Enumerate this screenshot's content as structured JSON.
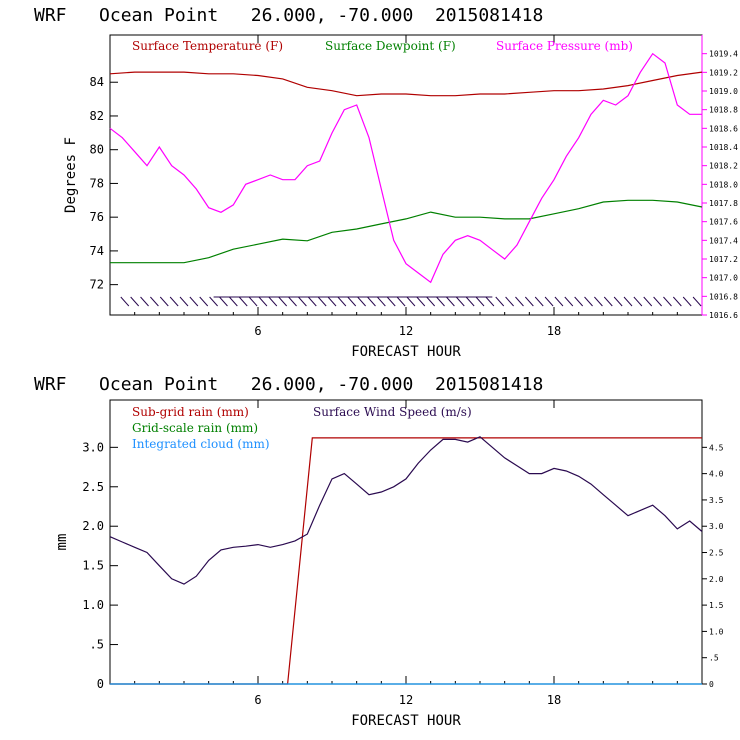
{
  "chart_data": [
    {
      "type": "line",
      "title": "WRF   Ocean Point   26.000, -70.000  2015081418",
      "xlabel": "FORECAST HOUR",
      "ylabel": "Degrees F",
      "xlim": [
        0,
        24
      ],
      "ylim": [
        70.2,
        86.8
      ],
      "x_ticks": [
        6,
        12,
        18
      ],
      "y_ticks": [
        72,
        74,
        76,
        78,
        80,
        82,
        84
      ],
      "y2_label": "",
      "y2lim": [
        1016.6,
        1019.6
      ],
      "y2_ticks": [
        "1016.6",
        "1016.8",
        "1017.0",
        "1017.2",
        "1017.4",
        "1017.6",
        "1017.8",
        "1018.0",
        "1018.2",
        "1018.4",
        "1018.6",
        "1018.8",
        "1019.0",
        "1019.2",
        "1019.4"
      ],
      "legend_placement": "top-left",
      "series": [
        {
          "name": "Surface Temperature (F)",
          "color": "#b00000",
          "axis": "left",
          "x": [
            0,
            1,
            2,
            3,
            4,
            5,
            6,
            7,
            8,
            9,
            10,
            11,
            12,
            13,
            14,
            15,
            16,
            17,
            18,
            19,
            20,
            21,
            22,
            23,
            24
          ],
          "values": [
            84.5,
            84.6,
            84.6,
            84.6,
            84.5,
            84.5,
            84.4,
            84.2,
            83.7,
            83.5,
            83.2,
            83.3,
            83.3,
            83.2,
            83.2,
            83.3,
            83.3,
            83.4,
            83.5,
            83.5,
            83.6,
            83.8,
            84.1,
            84.4,
            84.6
          ]
        },
        {
          "name": "Surface Dewpoint (F)",
          "color": "#008000",
          "axis": "left",
          "x": [
            0,
            1,
            2,
            3,
            4,
            5,
            6,
            7,
            8,
            9,
            10,
            11,
            12,
            13,
            14,
            15,
            16,
            17,
            18,
            19,
            20,
            21,
            22,
            23,
            24
          ],
          "values": [
            73.3,
            73.3,
            73.3,
            73.3,
            73.6,
            74.1,
            74.4,
            74.7,
            74.6,
            75.1,
            75.3,
            75.6,
            75.9,
            76.3,
            76.0,
            76.0,
            75.9,
            75.9,
            76.2,
            76.5,
            76.9,
            77.0,
            77.0,
            76.9,
            76.6
          ]
        },
        {
          "name": "Surface Pressure (mb)",
          "color": "#ff00ff",
          "axis": "right",
          "x": [
            0,
            0.5,
            1,
            1.5,
            2,
            2.5,
            3,
            3.5,
            4,
            4.5,
            5,
            5.5,
            6,
            6.5,
            7,
            7.5,
            8,
            8.5,
            9,
            9.5,
            10,
            10.5,
            11,
            11.5,
            12,
            12.5,
            13,
            13.5,
            14,
            14.5,
            15,
            15.5,
            16,
            16.5,
            17,
            17.5,
            18,
            18.5,
            19,
            19.5,
            20,
            20.5,
            21,
            21.5,
            22,
            22.5,
            23,
            23.5,
            24
          ],
          "values": [
            1018.6,
            1018.5,
            1018.35,
            1018.2,
            1018.4,
            1018.2,
            1018.1,
            1017.95,
            1017.75,
            1017.7,
            1017.78,
            1018.0,
            1018.05,
            1018.1,
            1018.05,
            1018.05,
            1018.2,
            1018.25,
            1018.55,
            1018.8,
            1018.85,
            1018.5,
            1017.95,
            1017.4,
            1017.15,
            1017.05,
            1016.95,
            1017.25,
            1017.4,
            1017.45,
            1017.4,
            1017.3,
            1017.2,
            1017.35,
            1017.6,
            1017.85,
            1018.05,
            1018.3,
            1018.5,
            1018.75,
            1018.9,
            1018.85,
            1018.95,
            1019.2,
            1019.4,
            1019.3,
            1018.85,
            1018.75,
            1018.75
          ]
        }
      ]
    },
    {
      "type": "line",
      "title": "WRF   Ocean Point   26.000, -70.000  2015081418",
      "xlabel": "FORECAST HOUR",
      "ylabel": "mm",
      "xlim": [
        0,
        24
      ],
      "ylim": [
        0,
        3.6
      ],
      "x_ticks": [
        6,
        12,
        18
      ],
      "y_ticks": [
        "0",
        ".5",
        "1.0",
        "1.5",
        "2.0",
        "2.5",
        "3.0"
      ],
      "y2_label": "",
      "y2lim": [
        0,
        5.4
      ],
      "y2_ticks": [
        "0",
        ".5",
        "1.0",
        "1.5",
        "2.0",
        "2.5",
        "3.0",
        "3.5",
        "4.0",
        "4.5"
      ],
      "legend_placement": "top-left",
      "series": [
        {
          "name": "Sub-grid rain (mm)",
          "color": "#b00000",
          "axis": "left",
          "x": [
            0,
            7.2,
            8.2,
            24
          ],
          "values": [
            0,
            0,
            3.12,
            3.12
          ]
        },
        {
          "name": "Grid-scale rain (mm)",
          "color": "#008000",
          "axis": "left",
          "x": [
            0,
            24
          ],
          "values": [
            0,
            0
          ]
        },
        {
          "name": "Integrated cloud (mm)",
          "color": "#1e90ff",
          "axis": "left",
          "x": [
            0,
            24
          ],
          "values": [
            0,
            0
          ]
        },
        {
          "name": "Surface Wind Speed (m/s)",
          "color": "#2a0a50",
          "axis": "right",
          "x": [
            0,
            0.5,
            1,
            1.5,
            2,
            2.5,
            3,
            3.5,
            4,
            4.5,
            5,
            5.5,
            6,
            6.5,
            7,
            7.5,
            8,
            8.5,
            9,
            9.5,
            10,
            10.5,
            11,
            11.5,
            12,
            12.5,
            13,
            13.5,
            14,
            14.5,
            15,
            15.5,
            16,
            16.5,
            17,
            17.5,
            18,
            18.5,
            19,
            19.5,
            20,
            20.5,
            21,
            21.5,
            22,
            22.5,
            23,
            23.5,
            24
          ],
          "values": [
            2.8,
            2.7,
            2.6,
            2.5,
            2.25,
            2.0,
            1.9,
            2.05,
            2.35,
            2.55,
            2.6,
            2.62,
            2.65,
            2.6,
            2.65,
            2.72,
            2.85,
            3.4,
            3.9,
            4.0,
            3.8,
            3.6,
            3.65,
            3.75,
            3.9,
            4.2,
            4.45,
            4.65,
            4.65,
            4.6,
            4.7,
            4.5,
            4.3,
            4.15,
            4.0,
            4.0,
            4.1,
            4.05,
            3.95,
            3.8,
            3.6,
            3.4,
            3.2,
            3.3,
            3.4,
            3.2,
            2.95,
            3.1,
            2.9
          ]
        }
      ]
    }
  ]
}
